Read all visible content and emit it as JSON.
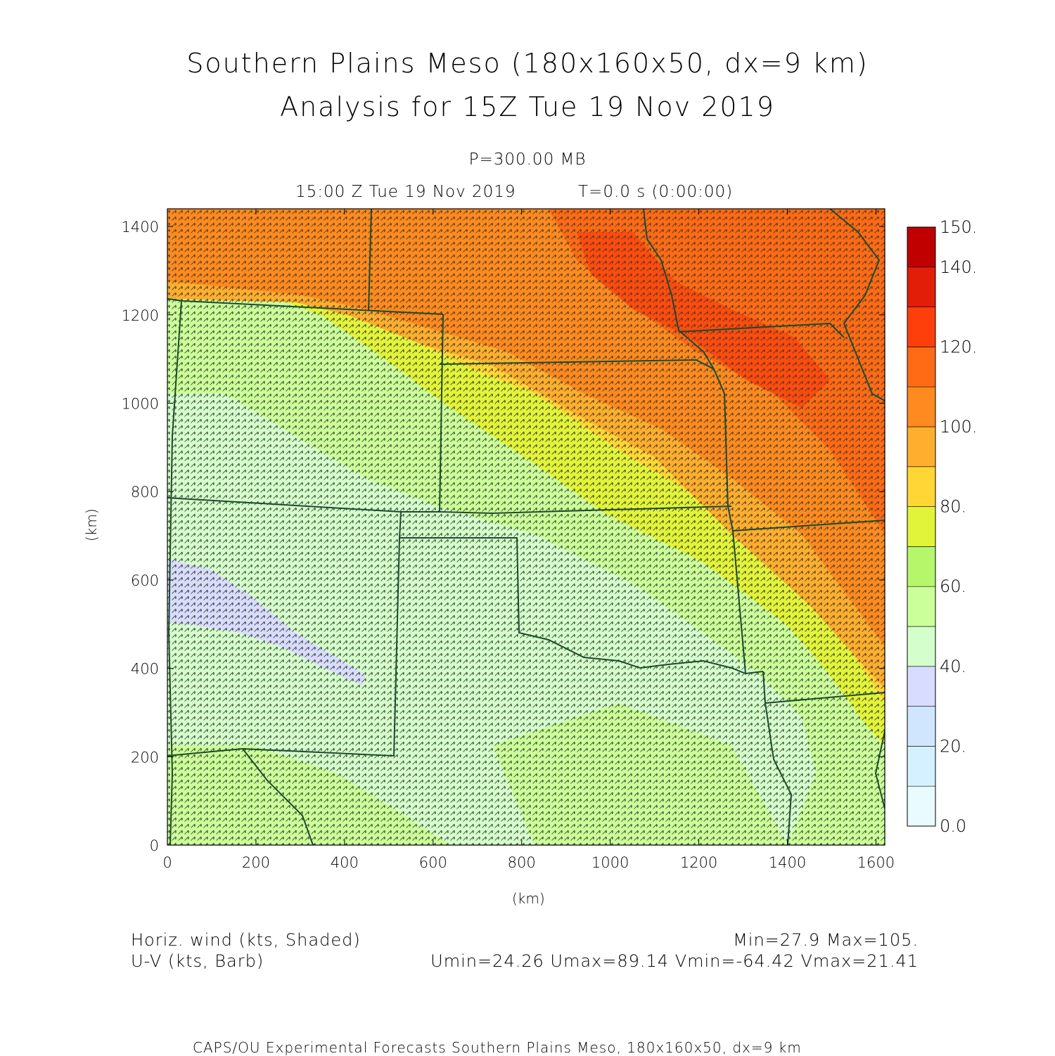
{
  "header": {
    "title_line1": "Southern Plains Meso (180x160x50, dx=9 km)",
    "title_line2": "Analysis for 15Z Tue 19 Nov 2019",
    "level": "P=300.00 MB",
    "valid_time": "15:00 Z Tue 19 Nov 2019",
    "model_time": "T=0.0 s (0:00:00)"
  },
  "axes": {
    "x_label": "(km)",
    "y_label": "(km)",
    "x_ticks": [
      0,
      200,
      400,
      600,
      800,
      1000,
      1200,
      1400,
      1600
    ],
    "y_ticks": [
      0,
      200,
      400,
      600,
      800,
      1000,
      1200,
      1400
    ],
    "x_range": [
      0,
      1620
    ],
    "y_range": [
      0,
      1440
    ]
  },
  "colorbar": {
    "labels": [
      "150.",
      "140.",
      "120.",
      "100.",
      "80.",
      "60.",
      "40.",
      "20.",
      "0.0"
    ],
    "colors": [
      "#e9fbff",
      "#d5f1ff",
      "#d0e6ff",
      "#d8dcff",
      "#d4ffcc",
      "#cbff9a",
      "#b5f66b",
      "#e2f43a",
      "#ffd636",
      "#ffae2e",
      "#ff8a1f",
      "#ff6a15",
      "#ff3f0b",
      "#e21e08",
      "#c00000"
    ],
    "min": 0,
    "max": 150
  },
  "legend": {
    "shaded_label": "Horiz. wind (kts, Shaded)",
    "barb_label": "U-V (kts, Barb)",
    "minmax": "Min=27.9 Max=105.",
    "uv_stats": "Umin=24.26 Umax=89.14 Vmin=-64.42 Vmax=21.41"
  },
  "footer": {
    "credit": "CAPS/OU Experimental Forecasts Southern Plains Meso, 180x160x50, dx=9 km"
  }
}
